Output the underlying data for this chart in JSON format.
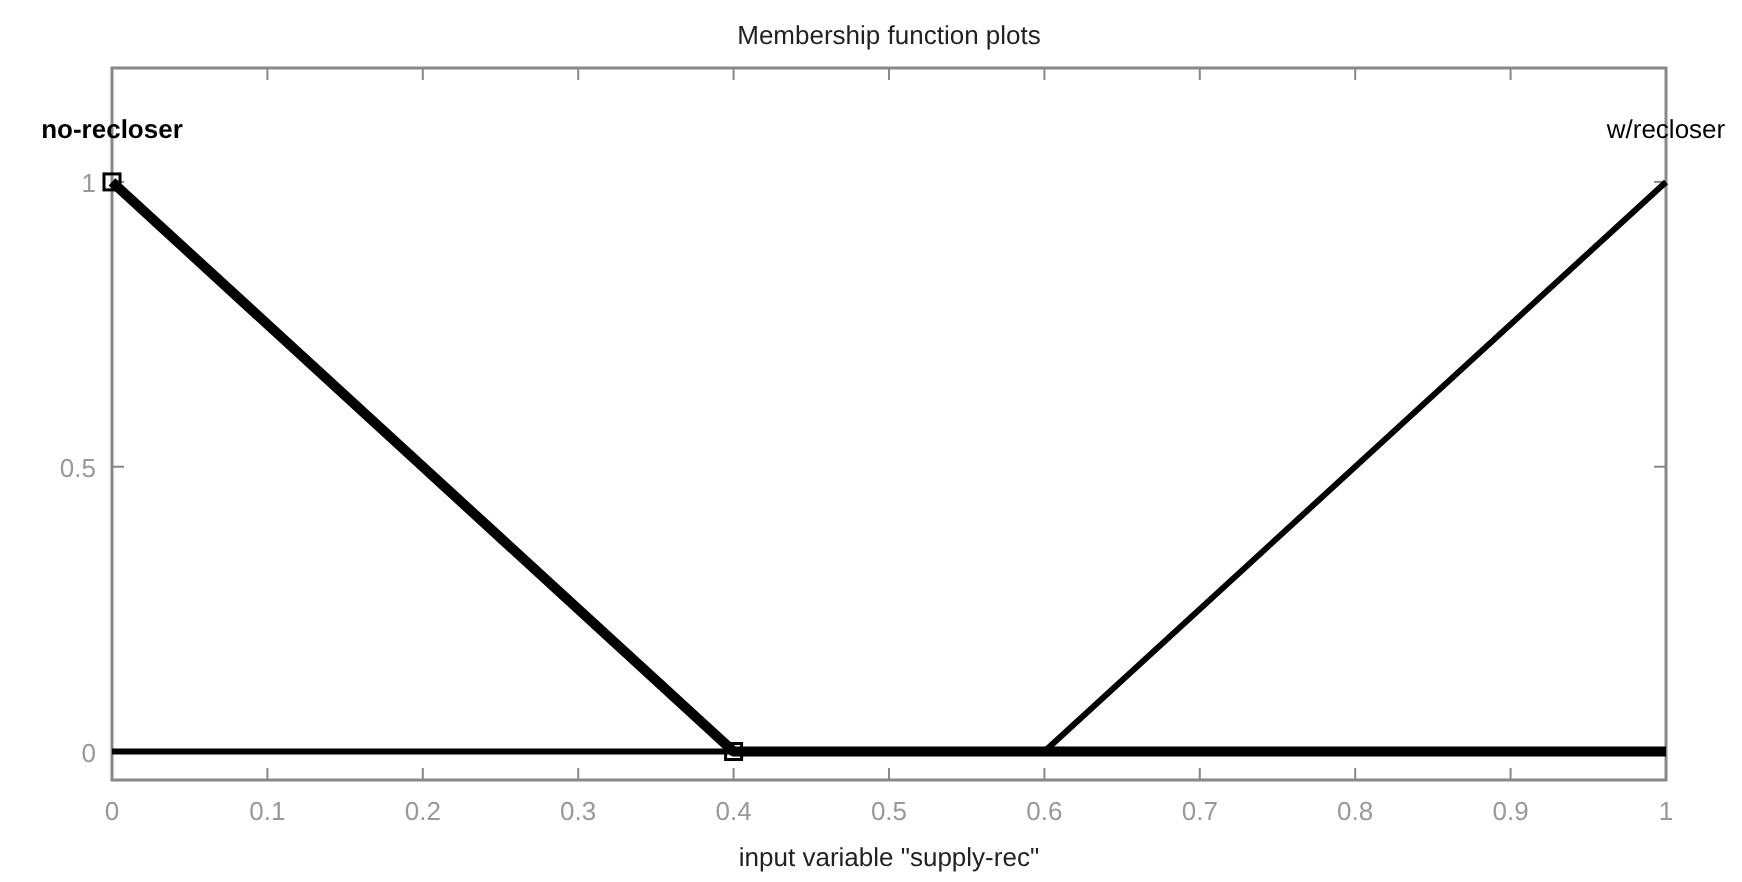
{
  "chart_data": {
    "type": "line",
    "title": "Membership function plots",
    "xlabel": "input variable \"supply-rec\"",
    "series": [
      {
        "name": "no-recloser",
        "color": "#000000",
        "x": [
          0,
          0.4,
          1
        ],
        "values": [
          1,
          0,
          0
        ],
        "marker": "square"
      },
      {
        "name": "w/recloser",
        "color": "#000000",
        "x": [
          0,
          0.6,
          1
        ],
        "values": [
          0,
          0,
          1
        ],
        "marker": "none"
      }
    ],
    "xlim": [
      0,
      1
    ],
    "xticks": [
      0,
      0.1,
      0.2,
      0.3,
      0.4,
      0.5,
      0.6,
      0.7,
      0.8,
      0.9,
      1
    ],
    "ylim": [
      -0.05,
      1.2
    ],
    "yticks": [
      0,
      0.5,
      1
    ],
    "grid": false,
    "line_style": "solid"
  }
}
